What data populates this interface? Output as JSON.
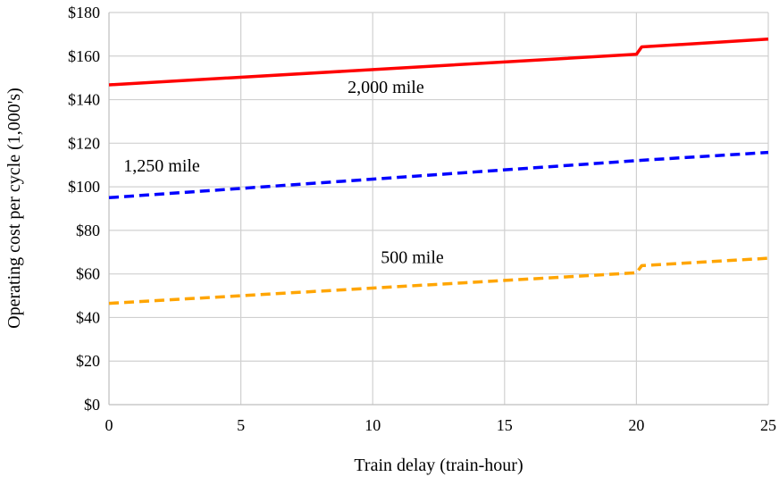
{
  "chart_data": {
    "type": "line",
    "title": "",
    "xlabel": "Train delay (train-hour)",
    "ylabel": "Operating cost per cycle (1,000's)",
    "xlim": [
      0,
      25
    ],
    "ylim": [
      0,
      180
    ],
    "x_ticks": [
      0,
      5,
      10,
      15,
      20,
      25
    ],
    "x_tick_labels": [
      "0",
      "5",
      "10",
      "15",
      "20",
      "25"
    ],
    "y_ticks": [
      0,
      20,
      40,
      60,
      80,
      100,
      120,
      140,
      160,
      180
    ],
    "y_tick_labels": [
      "$0",
      "$20",
      "$40",
      "$60",
      "$80",
      "$100",
      "$120",
      "$140",
      "$160",
      "$180"
    ],
    "grid": "vertical-and-horizontal",
    "legend": "none",
    "series": [
      {
        "name": "2,000 mile",
        "color": "#ff0000",
        "dash": "solid",
        "points": [
          [
            0,
            146.8
          ],
          [
            20,
            160.8
          ],
          [
            20.2,
            164.2
          ],
          [
            25,
            167.8
          ]
        ]
      },
      {
        "name": "1,250 mile",
        "color": "#0000ff",
        "dash": "dashed",
        "points": [
          [
            0,
            95
          ],
          [
            20,
            112
          ],
          [
            25,
            115.8
          ]
        ]
      },
      {
        "name": "500 mile",
        "color": "#ffa500",
        "dash": "dashed",
        "points": [
          [
            0,
            46.5
          ],
          [
            20,
            60.5
          ],
          [
            20.2,
            63.8
          ],
          [
            25,
            67.2
          ]
        ]
      }
    ],
    "annotations": [
      {
        "text": "2,000 mile",
        "series": 0,
        "x": 10.5,
        "y": 143
      },
      {
        "text": "1,250 mile",
        "series": 1,
        "x": 2,
        "y": 107
      },
      {
        "text": "500 mile",
        "series": 2,
        "x": 11.5,
        "y": 65
      }
    ]
  }
}
